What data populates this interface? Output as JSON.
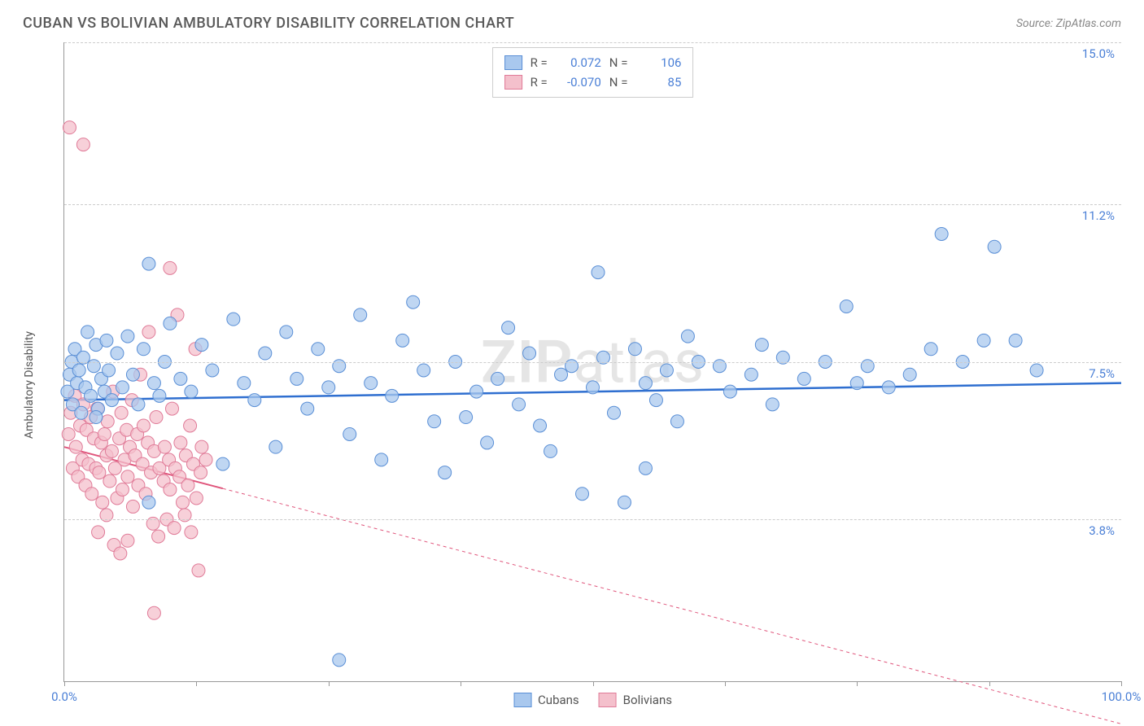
{
  "title": "CUBAN VS BOLIVIAN AMBULATORY DISABILITY CORRELATION CHART",
  "source": "Source: ZipAtlas.com",
  "watermark": {
    "bold": "ZIP",
    "rest": "atlas"
  },
  "ylabel": "Ambulatory Disability",
  "chart": {
    "type": "scatter",
    "background_color": "#ffffff",
    "grid_color": "#cccccc",
    "axis_color": "#999999",
    "x": {
      "min": 0,
      "max": 100,
      "ticks": [
        0,
        12.5,
        25,
        37.5,
        50,
        62.5,
        75,
        87.5,
        100
      ],
      "labels": {
        "0": "0.0%",
        "100": "100.0%"
      }
    },
    "y": {
      "min": 0,
      "max": 15,
      "gridlines": [
        3.8,
        7.5,
        11.2,
        15.0
      ],
      "labels": [
        "3.8%",
        "7.5%",
        "11.2%",
        "15.0%"
      ],
      "ylabel_color": "#4a7fd6"
    },
    "series": [
      {
        "name": "Cubans",
        "marker_color_fill": "#a9c8ee",
        "marker_color_stroke": "#5a8fd6",
        "marker_radius": 8,
        "marker_opacity": 0.75,
        "trend": {
          "color": "#2f6fd0",
          "width": 2.5,
          "y_at_x0": 6.6,
          "y_at_x100": 7.0,
          "dash": "none"
        },
        "R": "0.072",
        "N": "106",
        "points": [
          [
            0.3,
            6.8
          ],
          [
            0.5,
            7.2
          ],
          [
            0.7,
            7.5
          ],
          [
            0.8,
            6.5
          ],
          [
            1.0,
            7.8
          ],
          [
            1.2,
            7.0
          ],
          [
            1.4,
            7.3
          ],
          [
            1.6,
            6.3
          ],
          [
            1.8,
            7.6
          ],
          [
            2.0,
            6.9
          ],
          [
            2.2,
            8.2
          ],
          [
            2.5,
            6.7
          ],
          [
            2.8,
            7.4
          ],
          [
            3.0,
            7.9
          ],
          [
            3.2,
            6.4
          ],
          [
            3.5,
            7.1
          ],
          [
            3.8,
            6.8
          ],
          [
            4.0,
            8.0
          ],
          [
            4.2,
            7.3
          ],
          [
            4.5,
            6.6
          ],
          [
            5.0,
            7.7
          ],
          [
            5.5,
            6.9
          ],
          [
            6.0,
            8.1
          ],
          [
            6.5,
            7.2
          ],
          [
            7.0,
            6.5
          ],
          [
            7.5,
            7.8
          ],
          [
            8.0,
            9.8
          ],
          [
            8.5,
            7.0
          ],
          [
            9.0,
            6.7
          ],
          [
            9.5,
            7.5
          ],
          [
            10.0,
            8.4
          ],
          [
            11.0,
            7.1
          ],
          [
            12.0,
            6.8
          ],
          [
            13.0,
            7.9
          ],
          [
            14.0,
            7.3
          ],
          [
            8.0,
            4.2
          ],
          [
            15.0,
            5.1
          ],
          [
            16.0,
            8.5
          ],
          [
            17.0,
            7.0
          ],
          [
            18.0,
            6.6
          ],
          [
            19.0,
            7.7
          ],
          [
            20.0,
            5.5
          ],
          [
            21.0,
            8.2
          ],
          [
            22.0,
            7.1
          ],
          [
            23.0,
            6.4
          ],
          [
            24.0,
            7.8
          ],
          [
            25.0,
            6.9
          ],
          [
            26.0,
            7.4
          ],
          [
            27.0,
            5.8
          ],
          [
            28.0,
            8.6
          ],
          [
            29.0,
            7.0
          ],
          [
            30.0,
            5.2
          ],
          [
            31.0,
            6.7
          ],
          [
            32.0,
            8.0
          ],
          [
            33.0,
            8.9
          ],
          [
            34.0,
            7.3
          ],
          [
            35.0,
            6.1
          ],
          [
            36.0,
            4.9
          ],
          [
            37.0,
            7.5
          ],
          [
            38.0,
            6.2
          ],
          [
            39.0,
            6.8
          ],
          [
            40.0,
            5.6
          ],
          [
            41.0,
            7.1
          ],
          [
            42.0,
            8.3
          ],
          [
            43.0,
            6.5
          ],
          [
            44.0,
            7.7
          ],
          [
            45.0,
            6.0
          ],
          [
            46.0,
            5.4
          ],
          [
            47.0,
            7.2
          ],
          [
            48.0,
            7.4
          ],
          [
            49.0,
            4.4
          ],
          [
            50.0,
            6.9
          ],
          [
            50.5,
            9.6
          ],
          [
            51.0,
            7.6
          ],
          [
            52.0,
            6.3
          ],
          [
            53.0,
            4.2
          ],
          [
            54.0,
            7.8
          ],
          [
            55.0,
            7.0
          ],
          [
            56.0,
            6.6
          ],
          [
            55.0,
            5.0
          ],
          [
            57.0,
            7.3
          ],
          [
            58.0,
            6.1
          ],
          [
            59.0,
            8.1
          ],
          [
            60.0,
            7.5
          ],
          [
            62.0,
            7.4
          ],
          [
            63.0,
            6.8
          ],
          [
            65.0,
            7.2
          ],
          [
            66.0,
            7.9
          ],
          [
            67.0,
            6.5
          ],
          [
            68.0,
            7.6
          ],
          [
            70.0,
            7.1
          ],
          [
            72.0,
            7.5
          ],
          [
            74.0,
            8.8
          ],
          [
            75.0,
            7.0
          ],
          [
            76.0,
            7.4
          ],
          [
            78.0,
            6.9
          ],
          [
            80.0,
            7.2
          ],
          [
            82.0,
            7.8
          ],
          [
            83.0,
            10.5
          ],
          [
            85.0,
            7.5
          ],
          [
            87.0,
            8.0
          ],
          [
            88.0,
            10.2
          ],
          [
            90.0,
            8.0
          ],
          [
            92.0,
            7.3
          ],
          [
            26.0,
            0.5
          ],
          [
            3.0,
            6.2
          ]
        ]
      },
      {
        "name": "Bolivians",
        "marker_color_fill": "#f4c0cc",
        "marker_color_stroke": "#e07b98",
        "marker_radius": 8,
        "marker_opacity": 0.75,
        "trend": {
          "color": "#e0567c",
          "width": 2,
          "y_at_x0": 5.5,
          "y_at_x100": -1.0,
          "dash": "4,4",
          "solid_until_x": 15
        },
        "R": "-0.070",
        "N": "85",
        "points": [
          [
            0.4,
            5.8
          ],
          [
            0.6,
            6.3
          ],
          [
            0.8,
            5.0
          ],
          [
            1.0,
            6.7
          ],
          [
            1.1,
            5.5
          ],
          [
            1.3,
            4.8
          ],
          [
            1.5,
            6.0
          ],
          [
            1.7,
            5.2
          ],
          [
            1.8,
            6.5
          ],
          [
            2.0,
            4.6
          ],
          [
            2.1,
            5.9
          ],
          [
            2.3,
            5.1
          ],
          [
            2.5,
            6.2
          ],
          [
            2.6,
            4.4
          ],
          [
            2.8,
            5.7
          ],
          [
            3.0,
            5.0
          ],
          [
            3.1,
            6.4
          ],
          [
            3.3,
            4.9
          ],
          [
            3.5,
            5.6
          ],
          [
            0.5,
            13.0
          ],
          [
            3.6,
            4.2
          ],
          [
            3.8,
            5.8
          ],
          [
            4.0,
            5.3
          ],
          [
            4.1,
            6.1
          ],
          [
            4.3,
            4.7
          ],
          [
            4.5,
            5.4
          ],
          [
            4.6,
            6.8
          ],
          [
            4.8,
            5.0
          ],
          [
            5.0,
            4.3
          ],
          [
            1.8,
            12.6
          ],
          [
            5.2,
            5.7
          ],
          [
            5.4,
            6.3
          ],
          [
            5.5,
            4.5
          ],
          [
            5.7,
            5.2
          ],
          [
            5.9,
            5.9
          ],
          [
            6.0,
            4.8
          ],
          [
            6.2,
            5.5
          ],
          [
            6.4,
            6.6
          ],
          [
            6.5,
            4.1
          ],
          [
            6.7,
            5.3
          ],
          [
            6.9,
            5.8
          ],
          [
            7.0,
            4.6
          ],
          [
            7.2,
            7.2
          ],
          [
            7.4,
            5.1
          ],
          [
            7.5,
            6.0
          ],
          [
            7.7,
            4.4
          ],
          [
            7.9,
            5.6
          ],
          [
            8.0,
            8.2
          ],
          [
            8.2,
            4.9
          ],
          [
            8.4,
            3.7
          ],
          [
            8.5,
            5.4
          ],
          [
            8.7,
            6.2
          ],
          [
            8.9,
            3.4
          ],
          [
            9.0,
            5.0
          ],
          [
            3.2,
            3.5
          ],
          [
            4.7,
            3.2
          ],
          [
            9.4,
            4.7
          ],
          [
            9.5,
            5.5
          ],
          [
            9.7,
            3.8
          ],
          [
            9.9,
            5.2
          ],
          [
            10.0,
            4.5
          ],
          [
            10.2,
            6.4
          ],
          [
            10.4,
            3.6
          ],
          [
            10.5,
            5.0
          ],
          [
            10.7,
            8.6
          ],
          [
            10.9,
            4.8
          ],
          [
            11.0,
            5.6
          ],
          [
            11.2,
            4.2
          ],
          [
            11.4,
            3.9
          ],
          [
            5.3,
            3.0
          ],
          [
            11.5,
            5.3
          ],
          [
            11.7,
            4.6
          ],
          [
            11.9,
            6.0
          ],
          [
            12.0,
            3.5
          ],
          [
            12.2,
            5.1
          ],
          [
            12.4,
            7.8
          ],
          [
            12.5,
            4.3
          ],
          [
            12.7,
            2.6
          ],
          [
            12.9,
            4.9
          ],
          [
            13.0,
            5.5
          ],
          [
            10.0,
            9.7
          ],
          [
            13.4,
            5.2
          ],
          [
            8.5,
            1.6
          ],
          [
            4.0,
            3.9
          ],
          [
            6.0,
            3.3
          ]
        ]
      }
    ],
    "legend_bottom": [
      {
        "label": "Cubans",
        "fill": "#a9c8ee",
        "stroke": "#5a8fd6"
      },
      {
        "label": "Bolivians",
        "fill": "#f4c0cc",
        "stroke": "#e07b98"
      }
    ]
  }
}
